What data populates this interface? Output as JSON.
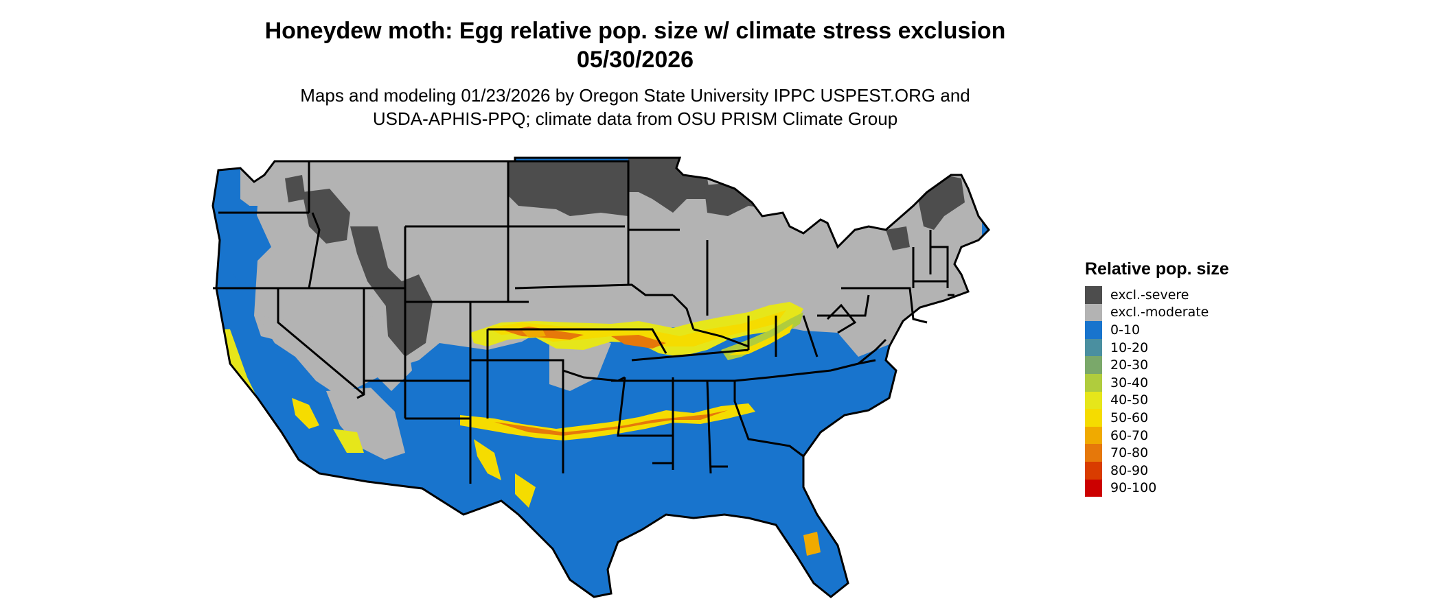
{
  "title_line1": "Honeydew moth: Egg relative pop. size w/ climate stress exclusion",
  "title_line2": "05/30/2026",
  "subtitle_line1": "Maps and modeling 01/23/2026 by Oregon State University IPPC USPEST.ORG and",
  "subtitle_line2": "USDA-APHIS-PPQ; climate data from OSU PRISM Climate Group",
  "legend": {
    "title": "Relative pop. size",
    "items": [
      {
        "label": "excl.-severe",
        "color": "#4d4d4d"
      },
      {
        "label": "excl.-moderate",
        "color": "#b3b3b3"
      },
      {
        "label": "0-10",
        "color": "#1874cd"
      },
      {
        "label": "10-20",
        "color": "#4a8fa0"
      },
      {
        "label": "20-30",
        "color": "#7aa86a"
      },
      {
        "label": "30-40",
        "color": "#b0cc3d"
      },
      {
        "label": "40-50",
        "color": "#e6e61a"
      },
      {
        "label": "50-60",
        "color": "#f5dc00"
      },
      {
        "label": "60-70",
        "color": "#f0aa00"
      },
      {
        "label": "70-80",
        "color": "#e6780a"
      },
      {
        "label": "80-90",
        "color": "#d93c00"
      },
      {
        "label": "90-100",
        "color": "#cc0000"
      }
    ]
  }
}
